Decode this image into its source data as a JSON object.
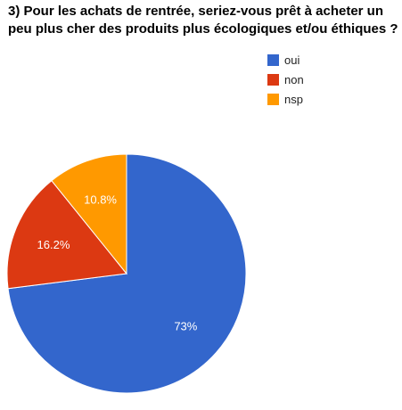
{
  "chart_data": {
    "type": "pie",
    "title_lines": [
      "3) Pour les achats de rentrée, seriez-vous prêt à acheter un",
      "peu plus cher des produits plus écologiques et/ou éthiques ?"
    ],
    "series": [
      {
        "name": "",
        "values": [
          73,
          16.2,
          10.8
        ]
      }
    ],
    "categories": [
      "oui",
      "non",
      "nsp"
    ],
    "data_labels": [
      "73%",
      "16.2%",
      "10.8%"
    ],
    "colors": [
      "#3366cc",
      "#dc3912",
      "#ff9900"
    ],
    "legend_position": "right",
    "start_angle": "12 o'clock, clockwise"
  }
}
